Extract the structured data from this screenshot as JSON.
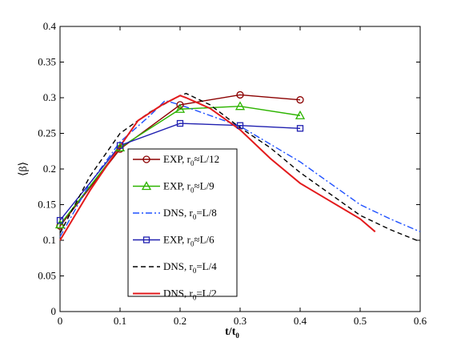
{
  "chart_data": {
    "type": "line",
    "xlabel_main": "t/t",
    "xlabel_sub": "0",
    "ylabel": "⟨β⟩",
    "xlim": [
      0,
      0.6
    ],
    "ylim": [
      0,
      0.4
    ],
    "xticks": [
      "0",
      "0.1",
      "0.2",
      "0.3",
      "0.4",
      "0.5",
      "0.6"
    ],
    "yticks": [
      "0",
      "0.05",
      "0.1",
      "0.15",
      "0.2",
      "0.25",
      "0.3",
      "0.35",
      "0.4"
    ],
    "legend_position": "center-left",
    "series": [
      {
        "name_main": "EXP, r",
        "name_sub": "0",
        "name_tail": "≈L/12",
        "color": "#8b0000",
        "dash": "solid",
        "marker": "circle",
        "x": [
          0,
          0.1,
          0.2,
          0.3,
          0.4
        ],
        "y": [
          0.12,
          0.228,
          0.29,
          0.304,
          0.297
        ]
      },
      {
        "name_main": "EXP, r",
        "name_sub": "0",
        "name_tail": "≈L/9",
        "color": "#2db400",
        "dash": "solid",
        "marker": "triangle",
        "x": [
          0,
          0.1,
          0.2,
          0.3,
          0.4
        ],
        "y": [
          0.122,
          0.23,
          0.284,
          0.288,
          0.275
        ]
      },
      {
        "name_main": "DNS, r",
        "name_sub": "0",
        "name_tail": "=L/8",
        "color": "#1e50ff",
        "dash": "dashdot",
        "marker": "none",
        "x": [
          0,
          0.05,
          0.1,
          0.15,
          0.175,
          0.2,
          0.25,
          0.3,
          0.35,
          0.4,
          0.45,
          0.5,
          0.55,
          0.6
        ],
        "y": [
          0.105,
          0.18,
          0.238,
          0.275,
          0.296,
          0.29,
          0.275,
          0.26,
          0.235,
          0.21,
          0.18,
          0.15,
          0.13,
          0.112
        ]
      },
      {
        "name_main": "EXP, r",
        "name_sub": "0",
        "name_tail": "≈L/6",
        "color": "#2020b0",
        "dash": "solid",
        "marker": "square",
        "x": [
          0,
          0.1,
          0.2,
          0.3,
          0.4
        ],
        "y": [
          0.128,
          0.233,
          0.264,
          0.261,
          0.257
        ]
      },
      {
        "name_main": "DNS, r",
        "name_sub": "0",
        "name_tail": "=L/4",
        "color": "#000000",
        "dash": "dashed",
        "marker": "none",
        "x": [
          0,
          0.05,
          0.1,
          0.15,
          0.2,
          0.21,
          0.25,
          0.3,
          0.35,
          0.4,
          0.45,
          0.5,
          0.55,
          0.6
        ],
        "y": [
          0.11,
          0.19,
          0.25,
          0.28,
          0.303,
          0.306,
          0.29,
          0.258,
          0.23,
          0.195,
          0.165,
          0.135,
          0.115,
          0.098
        ]
      },
      {
        "name_main": "DNS, r",
        "name_sub": "0",
        "name_tail": "=L/2",
        "color": "#e31a1c",
        "dash": "solid",
        "marker": "none",
        "x": [
          0,
          0.05,
          0.1,
          0.13,
          0.17,
          0.2,
          0.21,
          0.25,
          0.3,
          0.35,
          0.4,
          0.45,
          0.5,
          0.525
        ],
        "y": [
          0.1,
          0.17,
          0.232,
          0.268,
          0.29,
          0.303,
          0.3,
          0.285,
          0.255,
          0.215,
          0.18,
          0.155,
          0.13,
          0.112
        ]
      }
    ]
  }
}
